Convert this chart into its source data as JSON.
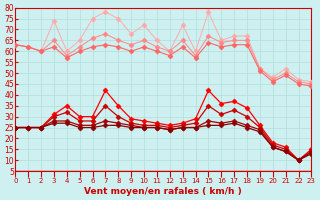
{
  "x": [
    0,
    1,
    2,
    3,
    4,
    5,
    6,
    7,
    8,
    9,
    10,
    11,
    12,
    13,
    14,
    15,
    16,
    17,
    18,
    19,
    20,
    21,
    22,
    23
  ],
  "line1": [
    63,
    62,
    60,
    74,
    60,
    65,
    75,
    78,
    75,
    68,
    72,
    65,
    60,
    72,
    60,
    78,
    65,
    67,
    67,
    52,
    48,
    52,
    47,
    46
  ],
  "line2": [
    63,
    62,
    60,
    65,
    58,
    62,
    66,
    68,
    65,
    63,
    65,
    62,
    60,
    65,
    58,
    67,
    64,
    65,
    65,
    52,
    47,
    50,
    46,
    45
  ],
  "line3": [
    63,
    62,
    60,
    62,
    57,
    60,
    62,
    63,
    62,
    60,
    62,
    60,
    58,
    62,
    57,
    64,
    62,
    63,
    63,
    51,
    46,
    49,
    45,
    44
  ],
  "line4": [
    25,
    25,
    25,
    31,
    35,
    30,
    30,
    42,
    35,
    29,
    28,
    27,
    26,
    27,
    29,
    42,
    36,
    37,
    34,
    26,
    18,
    16,
    10,
    15
  ],
  "line5": [
    25,
    25,
    25,
    30,
    32,
    28,
    28,
    35,
    30,
    27,
    26,
    26,
    25,
    26,
    27,
    35,
    31,
    33,
    30,
    25,
    17,
    15,
    10,
    14
  ],
  "line6": [
    25,
    25,
    25,
    28,
    28,
    26,
    26,
    28,
    27,
    26,
    25,
    25,
    24,
    25,
    25,
    28,
    27,
    28,
    26,
    24,
    16,
    14,
    10,
    14
  ],
  "line7": [
    25,
    25,
    25,
    27,
    27,
    25,
    25,
    26,
    26,
    25,
    25,
    25,
    24,
    25,
    25,
    26,
    26,
    27,
    25,
    23,
    16,
    14,
    10,
    13
  ],
  "background": "#cff0f0",
  "grid_color": "#b0dede",
  "line1_color": "#ffaaaa",
  "line2_color": "#ff8888",
  "line3_color": "#ff6666",
  "line4_color": "#ff0000",
  "line5_color": "#cc0000",
  "line6_color": "#aa0000",
  "line7_color": "#880000",
  "xlabel": "Vent moyen/en rafales ( km/h )",
  "xlabel_color": "#cc0000",
  "tick_color": "#cc0000",
  "ylim": [
    5,
    80
  ],
  "xlim": [
    0,
    23
  ],
  "yticks": [
    5,
    10,
    15,
    20,
    25,
    30,
    35,
    40,
    45,
    50,
    55,
    60,
    65,
    70,
    75,
    80
  ]
}
